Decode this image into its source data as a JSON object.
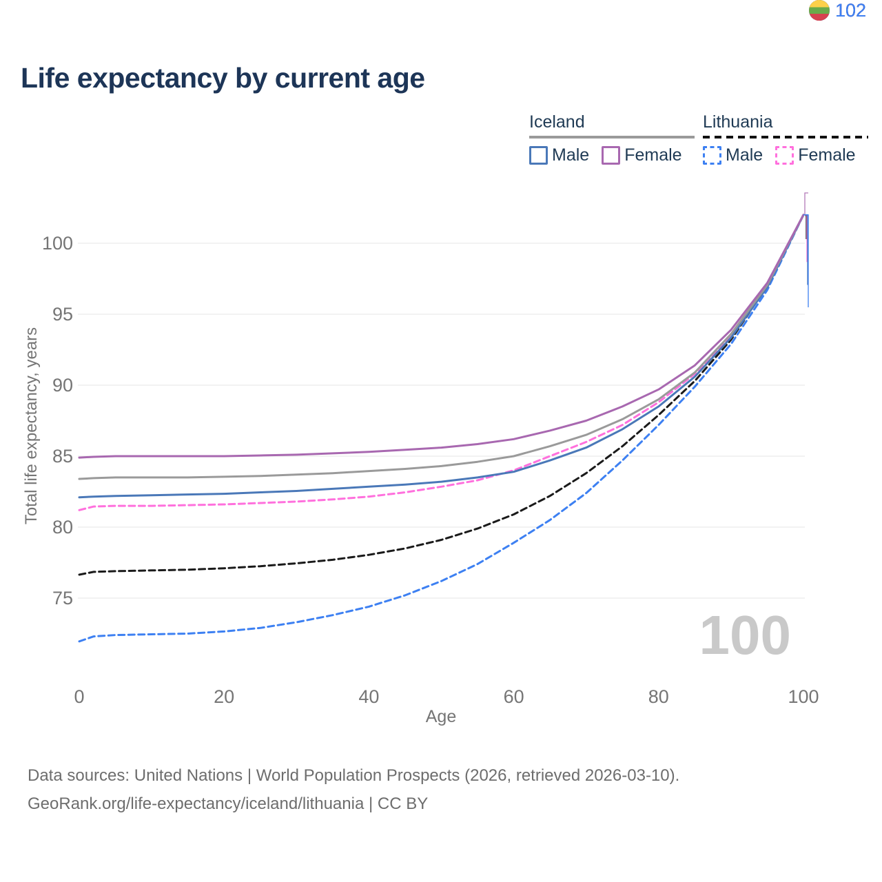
{
  "header": {
    "title": "Life expectancy by current age"
  },
  "legend": {
    "groups": [
      {
        "name": "Iceland",
        "line_style": "solid",
        "underline_color": "#9a9a9a",
        "items": [
          {
            "label": "Male",
            "color": "#4a78b8"
          },
          {
            "label": "Female",
            "color": "#a868b0"
          }
        ]
      },
      {
        "name": "Lithuania",
        "line_style": "dashed",
        "underline_color": "#111111",
        "items": [
          {
            "label": "Male",
            "color": "#3d80f2"
          },
          {
            "label": "Female",
            "color": "#ff70dd"
          }
        ]
      }
    ]
  },
  "chart_data": {
    "type": "line",
    "title": "Life expectancy by current age",
    "xlabel": "Age",
    "ylabel": "Total life expectancy, years",
    "xlim": [
      0,
      100
    ],
    "ylim": [
      71,
      103
    ],
    "xticks": [
      0,
      20,
      40,
      60,
      80,
      100
    ],
    "yticks": [
      75,
      80,
      85,
      90,
      95,
      100
    ],
    "grid": "horizontal",
    "gridline_color": "#ededed",
    "legend_position": "top-right",
    "x": [
      0,
      2,
      5,
      10,
      15,
      20,
      25,
      30,
      35,
      40,
      45,
      50,
      55,
      60,
      65,
      70,
      75,
      80,
      85,
      90,
      95,
      100
    ],
    "series": [
      {
        "name": "Iceland Female",
        "country": "Iceland",
        "sex": "Female",
        "style": "solid",
        "color": "#a868b0",
        "values": [
          84.9,
          84.95,
          85.0,
          85.0,
          85.0,
          85.0,
          85.05,
          85.1,
          85.2,
          85.3,
          85.45,
          85.6,
          85.85,
          86.2,
          86.8,
          87.5,
          88.5,
          89.7,
          91.4,
          93.9,
          97.2,
          102
        ]
      },
      {
        "name": "Iceland Total",
        "country": "Iceland",
        "sex": "Both",
        "style": "solid",
        "color": "#9a9a9a",
        "values": [
          83.4,
          83.45,
          83.5,
          83.5,
          83.5,
          83.55,
          83.6,
          83.7,
          83.8,
          83.95,
          84.1,
          84.3,
          84.6,
          85.0,
          85.7,
          86.5,
          87.6,
          89.0,
          90.9,
          93.6,
          97.05,
          102
        ]
      },
      {
        "name": "Iceland Male",
        "country": "Iceland",
        "sex": "Male",
        "style": "solid",
        "color": "#4a78b8",
        "values": [
          82.1,
          82.15,
          82.2,
          82.25,
          82.3,
          82.35,
          82.45,
          82.55,
          82.7,
          82.85,
          83.0,
          83.2,
          83.5,
          83.9,
          84.7,
          85.6,
          86.9,
          88.5,
          90.6,
          93.35,
          96.9,
          102
        ]
      },
      {
        "name": "Lithuania Female",
        "country": "Lithuania",
        "sex": "Female",
        "style": "dashed",
        "color": "#ff70dd",
        "values": [
          81.2,
          81.45,
          81.5,
          81.5,
          81.55,
          81.6,
          81.7,
          81.8,
          81.95,
          82.15,
          82.45,
          82.85,
          83.3,
          84.0,
          85.0,
          86.0,
          87.2,
          88.8,
          90.8,
          93.5,
          96.95,
          102
        ]
      },
      {
        "name": "Lithuania Total",
        "country": "Lithuania",
        "sex": "Both",
        "style": "dashed",
        "color": "#1a1a1a",
        "values": [
          76.65,
          76.85,
          76.9,
          76.95,
          77.0,
          77.1,
          77.25,
          77.45,
          77.7,
          78.05,
          78.5,
          79.1,
          79.9,
          80.9,
          82.2,
          83.8,
          85.7,
          87.9,
          90.3,
          93.2,
          97.0,
          102
        ]
      },
      {
        "name": "Lithuania Male",
        "country": "Lithuania",
        "sex": "Male",
        "style": "dashed",
        "color": "#3d80f2",
        "values": [
          71.95,
          72.3,
          72.4,
          72.45,
          72.5,
          72.65,
          72.9,
          73.3,
          73.8,
          74.4,
          75.2,
          76.2,
          77.4,
          78.9,
          80.5,
          82.4,
          84.7,
          87.2,
          89.9,
          92.9,
          96.7,
          102
        ]
      }
    ],
    "end_labels": [
      {
        "flag": "iceland",
        "value": "102",
        "color": "#b279b8",
        "series_index": 0
      },
      {
        "flag": "iceland",
        "value": "102",
        "color": "#a8a8a8",
        "series_index": 1
      },
      {
        "flag": "lithuania",
        "value": "102",
        "color": "#1a1a1a",
        "series_index": 4
      },
      {
        "flag": "lithuania",
        "value": "102",
        "color": "#ff80df",
        "series_index": 3
      },
      {
        "flag": "iceland",
        "value": "102",
        "color": "#4a78b8",
        "series_index": 2
      },
      {
        "flag": "lithuania",
        "value": "102",
        "color": "#3d80f2",
        "series_index": 5
      }
    ],
    "watermark": "100"
  },
  "footer": {
    "line1": "Data sources: United Nations | World Population Prospects (2026, retrieved 2026-03-10).",
    "line2": "GeoRank.org/life-expectancy/iceland/lithuania | CC BY"
  }
}
